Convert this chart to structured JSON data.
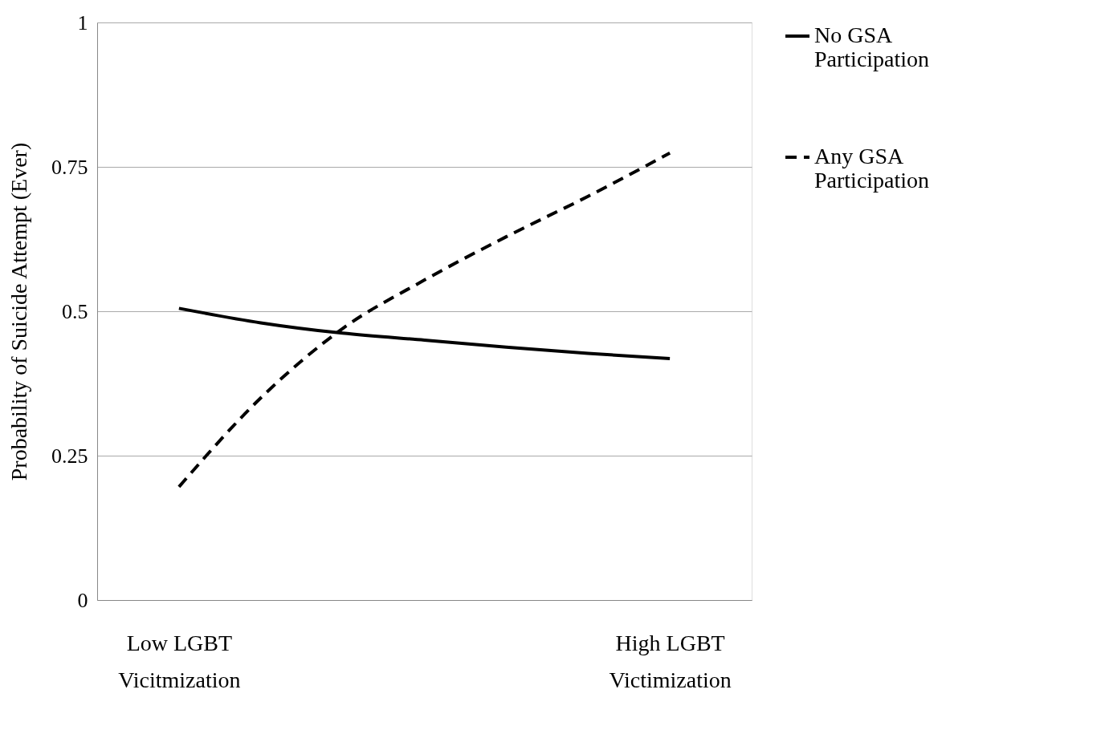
{
  "chart_data": {
    "type": "line",
    "ylabel": "Probability of Suicide Attempt (Ever)",
    "categories": [
      "Low LGBT\nVicitmization",
      null,
      null,
      null,
      null,
      null,
      "High LGBT\nVictimization"
    ],
    "ylim": [
      0,
      1
    ],
    "yticks": [
      0,
      0.25,
      0.5,
      0.75,
      1
    ],
    "grid": "y",
    "legend": "right",
    "marker": "none",
    "series": [
      {
        "name": "No GSA Participation",
        "color": "#000000",
        "line_style": "solid",
        "values": [
          0.505,
          0.48,
          0.462,
          0.45,
          0.438,
          0.427,
          0.418
        ]
      },
      {
        "name": "Any GSA Participation",
        "color": "#000000",
        "line_style": "dashed",
        "values": [
          0.196,
          0.35,
          0.47,
          0.554,
          0.629,
          0.699,
          0.774
        ]
      }
    ]
  }
}
